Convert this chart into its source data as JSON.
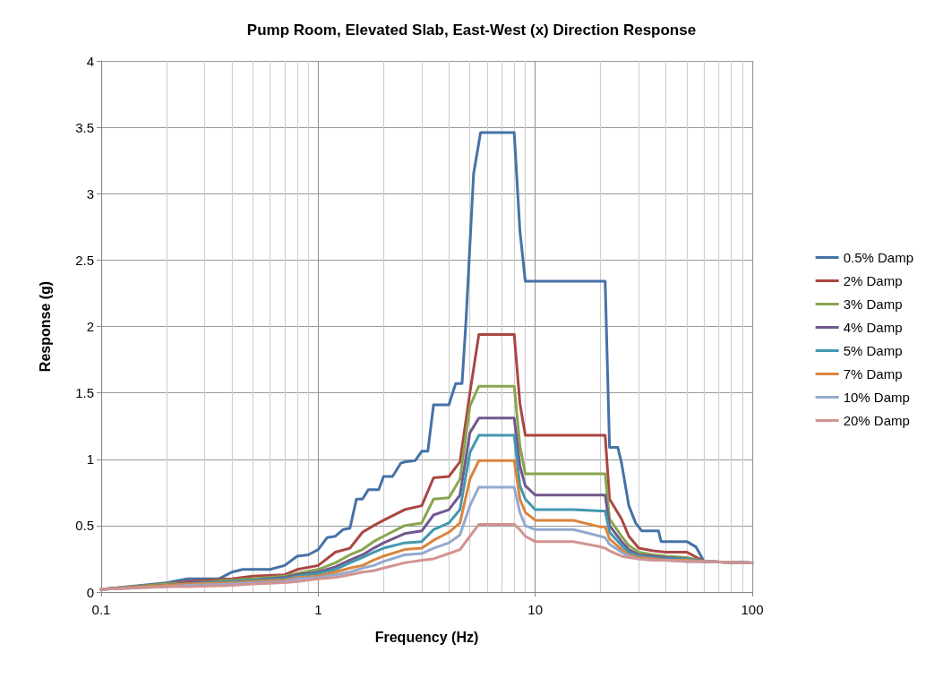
{
  "chart_data": {
    "type": "line",
    "title": "Pump Room, Elevated Slab, East-West (x) Direction Response",
    "xlabel": "Frequency (Hz)",
    "ylabel": "Response (g)",
    "log": "x",
    "xlim": [
      0.1,
      100
    ],
    "xticks": [
      0.1,
      1,
      10,
      100
    ],
    "ylim": [
      0,
      4
    ],
    "yticks": [
      0,
      0.5,
      1,
      1.5,
      2,
      2.5,
      3,
      3.5,
      4
    ],
    "grid": true,
    "legend": "right",
    "marker": "none",
    "line_style": "solid",
    "x": [
      0.1,
      0.2,
      0.25,
      0.4,
      0.5,
      0.7,
      0.8,
      1,
      1.2,
      1.4,
      1.6,
      1.8,
      2,
      2.5,
      3,
      3.4,
      4,
      4.5,
      5,
      5.5,
      6,
      8,
      8.5,
      9,
      10,
      15,
      20,
      21,
      22,
      25,
      27,
      30,
      35,
      40,
      50,
      60,
      100
    ],
    "series": [
      {
        "name": "0.5% Damp",
        "color": "#4572a7",
        "x": [
          0.1,
          0.2,
          0.25,
          0.35,
          0.4,
          0.45,
          0.6,
          0.7,
          0.8,
          0.9,
          1,
          1.1,
          1.2,
          1.3,
          1.4,
          1.5,
          1.6,
          1.7,
          1.9,
          2,
          2.2,
          2.4,
          2.5,
          2.8,
          3,
          3.2,
          3.4,
          4,
          4.3,
          4.6,
          4.8,
          5.2,
          5.6,
          8,
          8.5,
          9,
          21,
          22,
          24,
          25,
          27,
          29,
          31,
          37,
          38,
          50,
          55,
          60,
          100
        ],
        "values": [
          0.02,
          0.07,
          0.1,
          0.1,
          0.15,
          0.17,
          0.17,
          0.2,
          0.27,
          0.28,
          0.32,
          0.41,
          0.42,
          0.47,
          0.48,
          0.7,
          0.7,
          0.77,
          0.77,
          0.87,
          0.87,
          0.97,
          0.98,
          0.99,
          1.06,
          1.06,
          1.41,
          1.41,
          1.57,
          1.57,
          2.05,
          3.15,
          3.46,
          3.46,
          2.72,
          2.34,
          2.34,
          1.09,
          1.09,
          0.97,
          0.65,
          0.52,
          0.46,
          0.46,
          0.38,
          0.38,
          0.34,
          0.23,
          0.22
        ]
      },
      {
        "name": "2% Damp",
        "color": "#aa4643",
        "values": [
          0.02,
          0.06,
          0.08,
          0.1,
          0.12,
          0.13,
          0.17,
          0.2,
          0.3,
          0.33,
          0.45,
          0.5,
          0.54,
          0.62,
          0.65,
          0.86,
          0.87,
          0.98,
          1.5,
          1.94,
          1.94,
          1.94,
          1.42,
          1.18,
          1.18,
          1.18,
          1.18,
          1.18,
          0.7,
          0.55,
          0.42,
          0.33,
          0.31,
          0.3,
          0.3,
          0.23,
          0.22
        ]
      },
      {
        "name": "3% Damp",
        "color": "#89a54e",
        "values": [
          0.02,
          0.06,
          0.07,
          0.09,
          0.1,
          0.12,
          0.14,
          0.17,
          0.22,
          0.28,
          0.32,
          0.38,
          0.42,
          0.5,
          0.52,
          0.7,
          0.71,
          0.85,
          1.4,
          1.55,
          1.55,
          1.55,
          1.1,
          0.89,
          0.89,
          0.89,
          0.89,
          0.89,
          0.55,
          0.42,
          0.35,
          0.3,
          0.28,
          0.27,
          0.26,
          0.23,
          0.22
        ]
      },
      {
        "name": "4% Damp",
        "color": "#71588f",
        "values": [
          0.02,
          0.05,
          0.07,
          0.08,
          0.09,
          0.11,
          0.13,
          0.15,
          0.19,
          0.24,
          0.28,
          0.33,
          0.37,
          0.44,
          0.46,
          0.58,
          0.62,
          0.73,
          1.2,
          1.31,
          1.31,
          1.31,
          0.95,
          0.8,
          0.73,
          0.73,
          0.73,
          0.73,
          0.5,
          0.38,
          0.32,
          0.28,
          0.27,
          0.26,
          0.25,
          0.23,
          0.22
        ]
      },
      {
        "name": "5% Damp",
        "color": "#4198af",
        "values": [
          0.02,
          0.05,
          0.06,
          0.08,
          0.09,
          0.1,
          0.12,
          0.14,
          0.17,
          0.22,
          0.26,
          0.3,
          0.33,
          0.37,
          0.38,
          0.47,
          0.52,
          0.62,
          1.05,
          1.18,
          1.18,
          1.18,
          0.8,
          0.7,
          0.62,
          0.62,
          0.61,
          0.61,
          0.45,
          0.35,
          0.3,
          0.27,
          0.26,
          0.25,
          0.25,
          0.23,
          0.22
        ]
      },
      {
        "name": "7% Damp",
        "color": "#db843d",
        "values": [
          0.02,
          0.05,
          0.06,
          0.07,
          0.08,
          0.09,
          0.11,
          0.12,
          0.15,
          0.18,
          0.2,
          0.24,
          0.27,
          0.32,
          0.33,
          0.39,
          0.45,
          0.52,
          0.85,
          0.99,
          0.99,
          0.99,
          0.7,
          0.6,
          0.54,
          0.54,
          0.49,
          0.49,
          0.4,
          0.32,
          0.28,
          0.26,
          0.25,
          0.24,
          0.24,
          0.23,
          0.22
        ]
      },
      {
        "name": "10% Damp",
        "color": "#93a9cf",
        "values": [
          0.02,
          0.04,
          0.05,
          0.06,
          0.07,
          0.08,
          0.1,
          0.11,
          0.13,
          0.15,
          0.18,
          0.2,
          0.23,
          0.28,
          0.29,
          0.33,
          0.37,
          0.43,
          0.65,
          0.79,
          0.79,
          0.79,
          0.6,
          0.5,
          0.47,
          0.47,
          0.42,
          0.41,
          0.36,
          0.3,
          0.27,
          0.25,
          0.24,
          0.24,
          0.23,
          0.23,
          0.22
        ]
      },
      {
        "name": "20% Damp",
        "color": "#d19392",
        "values": [
          0.02,
          0.04,
          0.04,
          0.05,
          0.06,
          0.07,
          0.08,
          0.1,
          0.11,
          0.13,
          0.15,
          0.16,
          0.18,
          0.22,
          0.24,
          0.25,
          0.29,
          0.32,
          0.42,
          0.51,
          0.51,
          0.51,
          0.47,
          0.42,
          0.38,
          0.38,
          0.34,
          0.33,
          0.31,
          0.27,
          0.26,
          0.25,
          0.24,
          0.24,
          0.23,
          0.23,
          0.22
        ]
      }
    ]
  }
}
